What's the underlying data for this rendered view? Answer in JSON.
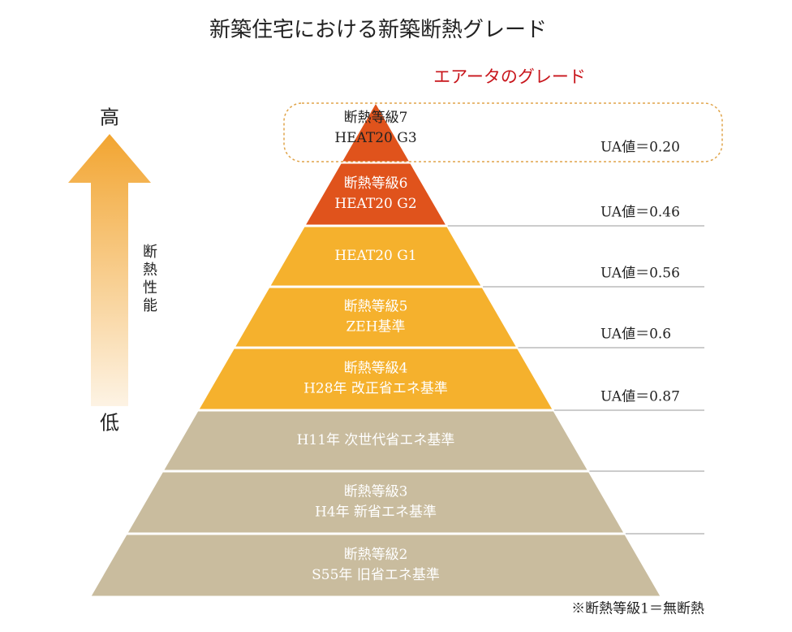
{
  "title": "新築住宅における新築断熱グレード",
  "subtitle": "エアータのグレード",
  "axis": {
    "high": "高",
    "low": "低",
    "label": "断熱性能"
  },
  "levels": [
    {
      "lines": [
        "断熱等級7",
        "HEAT20 G3"
      ],
      "ua": "UA値＝0.20"
    },
    {
      "lines": [
        "断熱等級6",
        "HEAT20 G2"
      ],
      "ua": "UA値＝0.46"
    },
    {
      "lines": [
        "HEAT20 G1"
      ],
      "ua": "UA値＝0.56"
    },
    {
      "lines": [
        "断熱等級5",
        "ZEH基準"
      ],
      "ua": "UA値＝0.6"
    },
    {
      "lines": [
        "断熱等級4",
        "H28年 改正省エネ基準"
      ],
      "ua": "UA値＝0.87"
    },
    {
      "lines": [
        "H11年 次世代省エネ基準"
      ]
    },
    {
      "lines": [
        "断熱等級3",
        "H4年 新省エネ基準"
      ]
    },
    {
      "lines": [
        "断熱等級2",
        "S55年 旧省エネ基準"
      ]
    }
  ],
  "footnote": "※断熱等級1＝無断熱"
}
